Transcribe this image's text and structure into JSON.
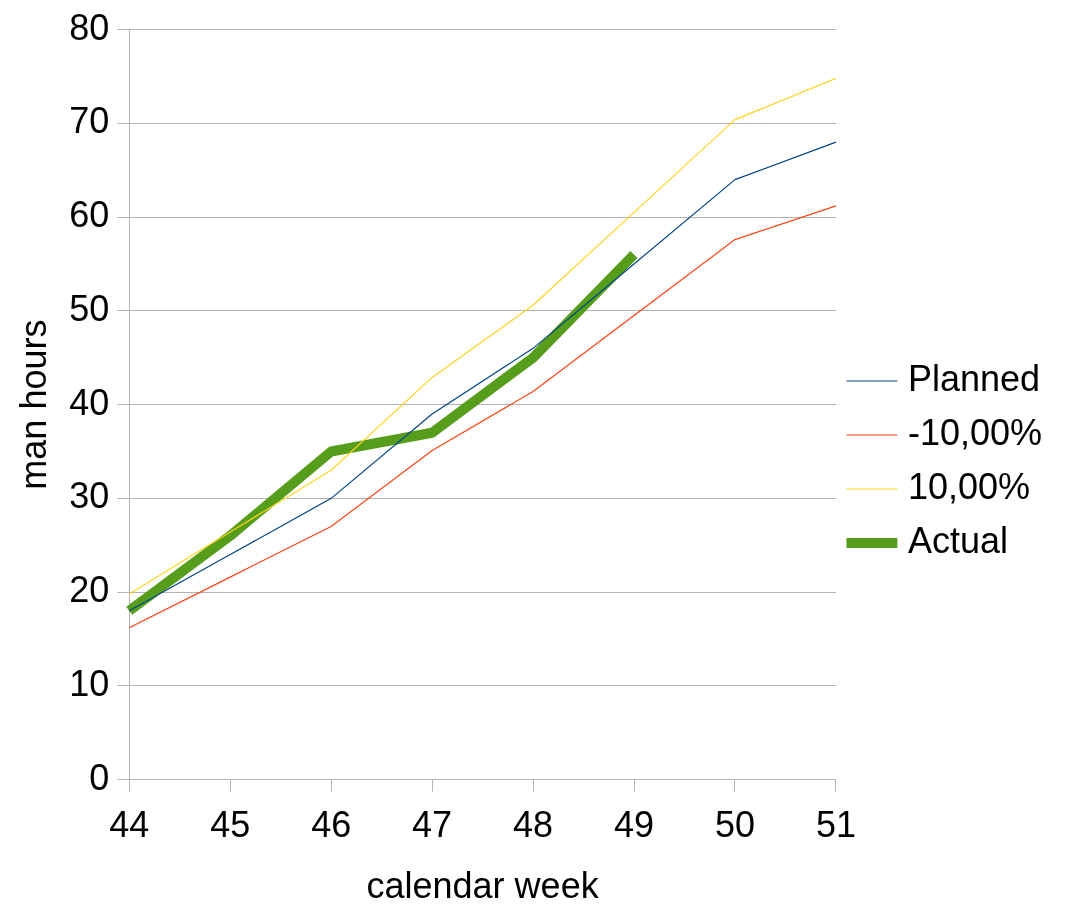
{
  "chart_data": {
    "type": "line",
    "xlabel": "calendar week",
    "ylabel": "man hours",
    "categories": [
      "44",
      "45",
      "46",
      "47",
      "48",
      "49",
      "50",
      "51"
    ],
    "series": [
      {
        "name": "Planned",
        "color": "#004586",
        "values": [
          18,
          24,
          30,
          39,
          46,
          55,
          64,
          68
        ]
      },
      {
        "name": "-10,00%",
        "color": "#ff420e",
        "values": [
          16.2,
          21.6,
          27,
          35.1,
          41.4,
          49.5,
          57.6,
          61.2
        ]
      },
      {
        "name": "10,00%",
        "color": "#ffd320",
        "values": [
          19.8,
          26.4,
          33,
          42.9,
          50.6,
          60.5,
          70.4,
          74.8
        ]
      },
      {
        "name": "Actual",
        "color": "#579d1c",
        "values": [
          18,
          26,
          35,
          37,
          45,
          56,
          null,
          null
        ]
      }
    ],
    "ylim": [
      0,
      80
    ],
    "yticks": [
      0,
      10,
      20,
      30,
      40,
      50,
      60,
      70,
      80
    ],
    "grid": "y",
    "legend": "right",
    "marker": "none"
  }
}
